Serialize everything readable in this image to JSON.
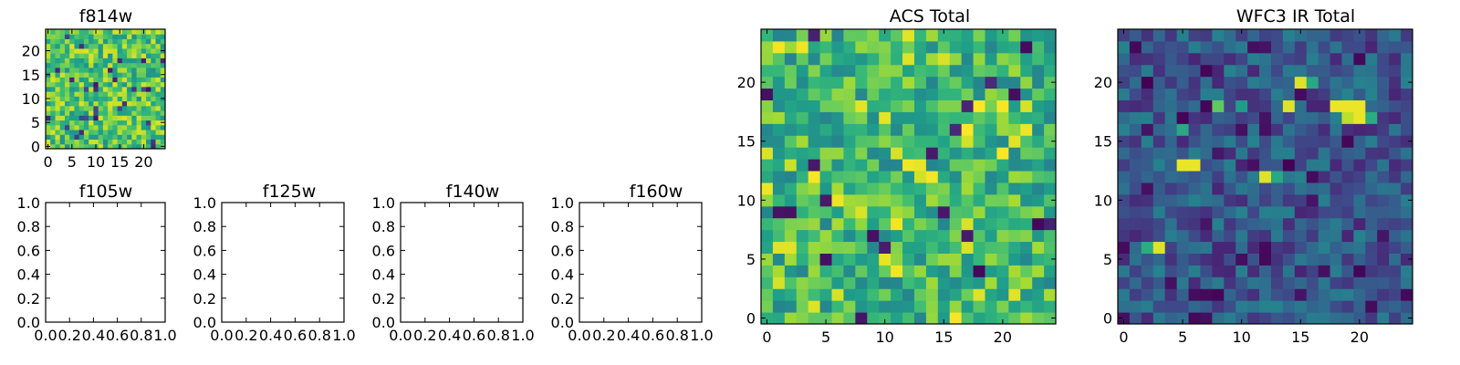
{
  "chart_data": [
    {
      "type": "heatmap",
      "title": "f814w",
      "grid_size": 25,
      "colormap": "viridis",
      "xticks": [
        "0",
        "5",
        "10",
        "15",
        "20"
      ],
      "yticks": [
        "0",
        "5",
        "10",
        "15",
        "20"
      ],
      "value_range": [
        0,
        1
      ],
      "values_note": "noisy map, mostly mid-to-high intensity"
    },
    {
      "type": "empty",
      "title": "f105w",
      "xticks": [
        "0.0",
        "0.2",
        "0.4",
        "0.6",
        "0.8",
        "1.0"
      ],
      "yticks": [
        "0.0",
        "0.2",
        "0.4",
        "0.6",
        "0.8",
        "1.0"
      ],
      "xlim": [
        0,
        1
      ],
      "ylim": [
        0,
        1
      ]
    },
    {
      "type": "empty",
      "title": "f125w",
      "xticks": [
        "0.0",
        "0.2",
        "0.4",
        "0.6",
        "0.8",
        "1.0"
      ],
      "yticks": [
        "0.0",
        "0.2",
        "0.4",
        "0.6",
        "0.8",
        "1.0"
      ],
      "xlim": [
        0,
        1
      ],
      "ylim": [
        0,
        1
      ]
    },
    {
      "type": "empty",
      "title": "f140w",
      "xticks": [
        "0.0",
        "0.2",
        "0.4",
        "0.6",
        "0.8",
        "1.0"
      ],
      "yticks": [
        "0.0",
        "0.2",
        "0.4",
        "0.6",
        "0.8",
        "1.0"
      ],
      "xlim": [
        0,
        1
      ],
      "ylim": [
        0,
        1
      ]
    },
    {
      "type": "empty",
      "title": "f160w",
      "xticks": [
        "0.0",
        "0.2",
        "0.4",
        "0.6",
        "0.8",
        "1.0"
      ],
      "yticks": [
        "0.0",
        "0.2",
        "0.4",
        "0.6",
        "0.8",
        "1.0"
      ],
      "xlim": [
        0,
        1
      ],
      "ylim": [
        0,
        1
      ]
    },
    {
      "type": "heatmap",
      "title": "ACS Total",
      "grid_size": 25,
      "colormap": "viridis",
      "xticks": [
        "0",
        "5",
        "10",
        "15",
        "20"
      ],
      "yticks": [
        "0",
        "5",
        "10",
        "15",
        "20"
      ],
      "value_range": [
        0,
        1
      ],
      "values_note": "noisy map, mostly green/yellow-green with scattered yellow and dark pixels"
    },
    {
      "type": "heatmap",
      "title": "WFC3 IR Total",
      "grid_size": 25,
      "colormap": "viridis",
      "xticks": [
        "0",
        "5",
        "10",
        "15",
        "20"
      ],
      "yticks": [
        "0",
        "5",
        "10",
        "15",
        "20"
      ],
      "value_range": [
        0,
        1
      ],
      "values_note": "mostly dark blue/teal with bright spots near (5,13), (12,12), (3,6), (19,18), (15,20), (8,18)",
      "hotspots": [
        {
          "x": 5,
          "y": 13,
          "v": 0.97
        },
        {
          "x": 6,
          "y": 13,
          "v": 0.97
        },
        {
          "x": 12,
          "y": 12,
          "v": 0.95
        },
        {
          "x": 13,
          "y": 12,
          "v": 0.6
        },
        {
          "x": 3,
          "y": 6,
          "v": 0.95
        },
        {
          "x": 2,
          "y": 6,
          "v": 0.62
        },
        {
          "x": 18,
          "y": 18,
          "v": 0.97
        },
        {
          "x": 19,
          "y": 18,
          "v": 0.97
        },
        {
          "x": 20,
          "y": 18,
          "v": 0.97
        },
        {
          "x": 19,
          "y": 17,
          "v": 0.9
        },
        {
          "x": 20,
          "y": 17,
          "v": 0.97
        },
        {
          "x": 21,
          "y": 17,
          "v": 0.62
        },
        {
          "x": 15,
          "y": 20,
          "v": 0.95
        },
        {
          "x": 16,
          "y": 20,
          "v": 0.6
        },
        {
          "x": 14,
          "y": 18,
          "v": 0.95
        },
        {
          "x": 8,
          "y": 18,
          "v": 0.75
        },
        {
          "x": 10,
          "y": 18,
          "v": 0.55
        },
        {
          "x": 5,
          "y": 16,
          "v": 0.6
        }
      ]
    }
  ]
}
